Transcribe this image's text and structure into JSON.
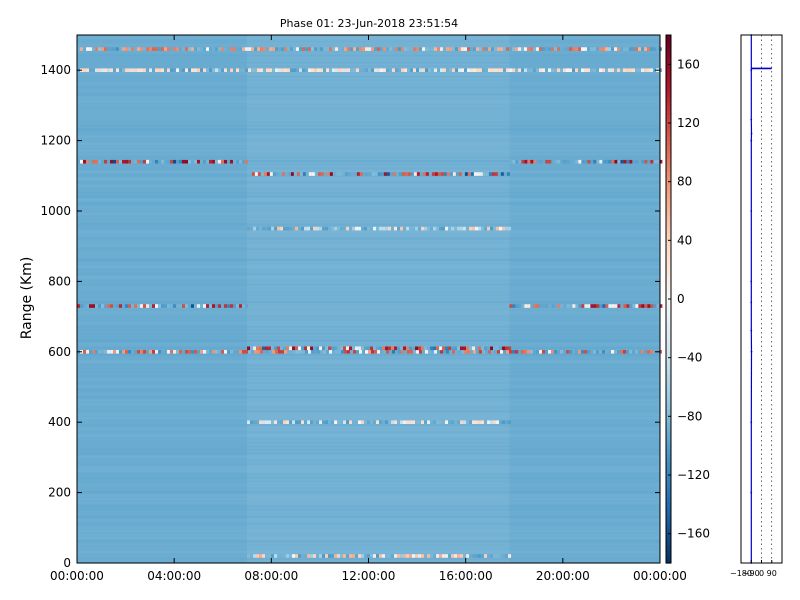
{
  "chart_data": [
    {
      "type": "heatmap",
      "title": "Phase 01: 23-Jun-2018 23:51:54",
      "xlabel": "",
      "ylabel": "Range (Km)",
      "x_ticks": [
        "00:00:00",
        "04:00:00",
        "08:00:00",
        "12:00:00",
        "16:00:00",
        "20:00:00",
        "00:00:00"
      ],
      "x_tick_hours": [
        0,
        4,
        8,
        12,
        16,
        20,
        24
      ],
      "y_ticks": [
        0,
        200,
        400,
        600,
        800,
        1000,
        1200,
        1400
      ],
      "xlim_hours": [
        0,
        24
      ],
      "ylim": [
        0,
        1500
      ],
      "colormap": "RdBu_r",
      "background_value": -90,
      "colorbar": {
        "ticks": [
          160,
          120,
          80,
          40,
          0,
          -40,
          -80,
          -120,
          -160
        ],
        "range": [
          -180,
          180
        ]
      },
      "bands": [
        {
          "range_km": 1140,
          "start_hour": 0,
          "end_hour": 7.0,
          "value": 150
        },
        {
          "range_km": 1105,
          "start_hour": 7.2,
          "end_hour": 17.8,
          "value": 150
        },
        {
          "range_km": 1140,
          "start_hour": 17.8,
          "end_hour": 24,
          "value": 150
        },
        {
          "range_km": 730,
          "start_hour": 0,
          "end_hour": 7.0,
          "value": 150
        },
        {
          "range_km": 730,
          "start_hour": 17.8,
          "end_hour": 24,
          "value": 150
        },
        {
          "range_km": 600,
          "start_hour": 0,
          "end_hour": 24,
          "value": 120
        },
        {
          "range_km": 610,
          "start_hour": 7.0,
          "end_hour": 17.8,
          "value": 150
        },
        {
          "range_km": 400,
          "start_hour": 7.0,
          "end_hour": 17.8,
          "value": 40
        },
        {
          "range_km": 1400,
          "start_hour": 0,
          "end_hour": 24,
          "value": 40
        },
        {
          "range_km": 1460,
          "start_hour": 0,
          "end_hour": 24,
          "value": 100
        },
        {
          "range_km": 20,
          "start_hour": 7.0,
          "end_hour": 17.8,
          "value": 60
        },
        {
          "range_km": 950,
          "start_hour": 7.0,
          "end_hour": 17.8,
          "value": -60
        }
      ]
    },
    {
      "type": "line",
      "x_ticks": [
        "−180",
        "−90",
        "0",
        "90"
      ],
      "x_tick_values": [
        -180,
        -90,
        0,
        90
      ],
      "xlim": [
        -180,
        180
      ],
      "ylim": [
        0,
        1500
      ],
      "grid": true,
      "series_color": "#0000cc",
      "profile": [
        [
          0,
          -90
        ],
        [
          200,
          -90
        ],
        [
          400,
          -90
        ],
        [
          600,
          -88
        ],
        [
          660,
          -90
        ],
        [
          740,
          -90
        ],
        [
          800,
          -90
        ],
        [
          1000,
          -90
        ],
        [
          1200,
          -90
        ],
        [
          1220,
          -88
        ],
        [
          1260,
          -90
        ],
        [
          1400,
          -90
        ],
        [
          1500,
          -90
        ]
      ],
      "marker": {
        "range_km": 1405,
        "x_start": -90,
        "x_end": 90
      }
    }
  ]
}
